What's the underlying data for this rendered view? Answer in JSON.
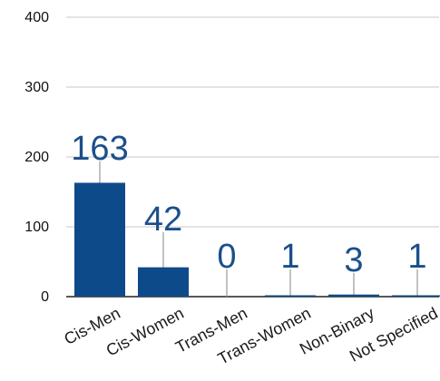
{
  "chart_data": {
    "type": "bar",
    "categories": [
      "Cis-Men",
      "Cis-Women",
      "Trans-Men",
      "Trans-Women",
      "Non-Binary",
      "Not Specified"
    ],
    "values": [
      163,
      42,
      0,
      1,
      3,
      1
    ],
    "data_labels": [
      "163",
      "42",
      "0",
      "1",
      "3",
      "1"
    ],
    "y_ticks": [
      "0",
      "100",
      "200",
      "300",
      "400"
    ],
    "ylim": [
      0,
      400
    ],
    "grid": true,
    "bar_color": "#0d4a8a",
    "label_color": "#1a4f8b",
    "gridline_color": "#c8c8c8"
  }
}
